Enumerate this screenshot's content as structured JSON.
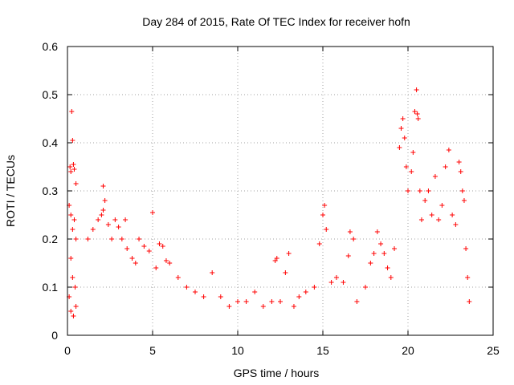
{
  "chart_data": {
    "type": "scatter",
    "title": "Day 284 of 2015, Rate Of TEC Index for receiver hofn",
    "xlabel": "GPS time / hours",
    "ylabel": "ROTI / TECUs",
    "xlim": [
      0,
      25
    ],
    "ylim": [
      0,
      0.6
    ],
    "xticks": [
      "0",
      "5",
      "10",
      "15",
      "20",
      "25"
    ],
    "yticks": [
      "0",
      "0.1",
      "0.2",
      "0.3",
      "0.4",
      "0.5",
      "0.6"
    ],
    "grid": true,
    "marker": "+",
    "marker_color": "#ff0000",
    "series": [
      {
        "name": "ROTI",
        "points": [
          [
            0.1,
            0.27
          ],
          [
            0.15,
            0.35
          ],
          [
            0.2,
            0.34
          ],
          [
            0.25,
            0.465
          ],
          [
            0.3,
            0.405
          ],
          [
            0.35,
            0.355
          ],
          [
            0.4,
            0.345
          ],
          [
            0.5,
            0.315
          ],
          [
            0.2,
            0.25
          ],
          [
            0.3,
            0.22
          ],
          [
            0.4,
            0.24
          ],
          [
            0.5,
            0.2
          ],
          [
            0.2,
            0.16
          ],
          [
            0.3,
            0.12
          ],
          [
            0.45,
            0.1
          ],
          [
            0.1,
            0.08
          ],
          [
            0.2,
            0.05
          ],
          [
            0.35,
            0.04
          ],
          [
            0.5,
            0.06
          ],
          [
            1.2,
            0.2
          ],
          [
            1.5,
            0.22
          ],
          [
            1.8,
            0.24
          ],
          [
            2.0,
            0.25
          ],
          [
            2.1,
            0.26
          ],
          [
            2.1,
            0.31
          ],
          [
            2.2,
            0.28
          ],
          [
            2.4,
            0.23
          ],
          [
            2.6,
            0.2
          ],
          [
            2.8,
            0.24
          ],
          [
            3.0,
            0.225
          ],
          [
            3.2,
            0.2
          ],
          [
            3.4,
            0.24
          ],
          [
            3.5,
            0.18
          ],
          [
            3.8,
            0.16
          ],
          [
            4.0,
            0.15
          ],
          [
            4.2,
            0.2
          ],
          [
            4.5,
            0.185
          ],
          [
            4.8,
            0.175
          ],
          [
            5.0,
            0.255
          ],
          [
            5.2,
            0.14
          ],
          [
            5.4,
            0.19
          ],
          [
            5.6,
            0.185
          ],
          [
            5.8,
            0.155
          ],
          [
            6.0,
            0.15
          ],
          [
            6.5,
            0.12
          ],
          [
            7.0,
            0.1
          ],
          [
            7.5,
            0.09
          ],
          [
            8.0,
            0.08
          ],
          [
            8.5,
            0.13
          ],
          [
            9.0,
            0.08
          ],
          [
            9.5,
            0.06
          ],
          [
            10.0,
            0.07
          ],
          [
            10.5,
            0.07
          ],
          [
            11.0,
            0.09
          ],
          [
            11.5,
            0.06
          ],
          [
            12.0,
            0.07
          ],
          [
            12.2,
            0.155
          ],
          [
            12.3,
            0.16
          ],
          [
            12.5,
            0.07
          ],
          [
            12.8,
            0.13
          ],
          [
            13.0,
            0.17
          ],
          [
            13.3,
            0.06
          ],
          [
            13.6,
            0.08
          ],
          [
            14.0,
            0.09
          ],
          [
            14.5,
            0.1
          ],
          [
            14.8,
            0.19
          ],
          [
            15.0,
            0.25
          ],
          [
            15.1,
            0.27
          ],
          [
            15.2,
            0.22
          ],
          [
            15.5,
            0.11
          ],
          [
            15.8,
            0.12
          ],
          [
            16.2,
            0.11
          ],
          [
            16.5,
            0.165
          ],
          [
            16.6,
            0.215
          ],
          [
            16.8,
            0.2
          ],
          [
            17.0,
            0.07
          ],
          [
            17.5,
            0.1
          ],
          [
            17.8,
            0.15
          ],
          [
            18.0,
            0.17
          ],
          [
            18.2,
            0.215
          ],
          [
            18.4,
            0.19
          ],
          [
            18.6,
            0.17
          ],
          [
            18.8,
            0.14
          ],
          [
            19.0,
            0.12
          ],
          [
            19.2,
            0.18
          ],
          [
            19.5,
            0.39
          ],
          [
            19.6,
            0.43
          ],
          [
            19.7,
            0.45
          ],
          [
            19.8,
            0.41
          ],
          [
            19.9,
            0.35
          ],
          [
            20.0,
            0.3
          ],
          [
            20.2,
            0.34
          ],
          [
            20.3,
            0.38
          ],
          [
            20.4,
            0.465
          ],
          [
            20.5,
            0.51
          ],
          [
            20.55,
            0.46
          ],
          [
            20.6,
            0.45
          ],
          [
            20.7,
            0.3
          ],
          [
            20.8,
            0.24
          ],
          [
            21.0,
            0.28
          ],
          [
            21.2,
            0.3
          ],
          [
            21.4,
            0.25
          ],
          [
            21.6,
            0.33
          ],
          [
            21.8,
            0.24
          ],
          [
            22.0,
            0.27
          ],
          [
            22.2,
            0.35
          ],
          [
            22.4,
            0.385
          ],
          [
            22.6,
            0.25
          ],
          [
            22.8,
            0.23
          ],
          [
            23.0,
            0.36
          ],
          [
            23.1,
            0.34
          ],
          [
            23.2,
            0.3
          ],
          [
            23.3,
            0.28
          ],
          [
            23.4,
            0.18
          ],
          [
            23.5,
            0.12
          ],
          [
            23.6,
            0.07
          ]
        ]
      }
    ]
  }
}
